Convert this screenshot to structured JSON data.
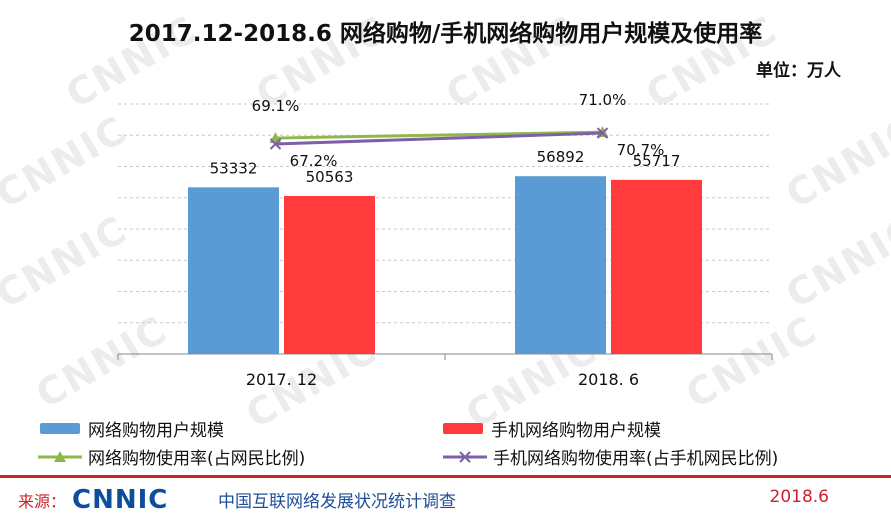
{
  "title": "2017.12-2018.6 网络购物/手机网络购物用户规模及使用率",
  "unit": "单位：万人",
  "watermark": "CNNIC",
  "chart_data": {
    "type": "bar",
    "categories": [
      "2017. 12",
      "2018. 6"
    ],
    "series": [
      {
        "name": "网络购物用户规模",
        "values": [
          53332,
          56892
        ],
        "value_labels": [
          "53332",
          "56892"
        ],
        "color": "#5b9bd5",
        "axis": "left"
      },
      {
        "name": "手机网络购物用户规模",
        "values": [
          50563,
          55717
        ],
        "value_labels": [
          "50563",
          "55717"
        ],
        "color": "#ff3b3b",
        "axis": "left"
      }
    ],
    "line_series": [
      {
        "name": "网络购物使用率(占网民比例)",
        "values": [
          69.1,
          71.0
        ],
        "value_labels": [
          "69.1%",
          "71.0%"
        ],
        "color": "#8fb84b",
        "marker": "triangle",
        "axis": "right"
      },
      {
        "name": "手机网络购物使用率(占手机网民比例)",
        "values": [
          67.2,
          70.7
        ],
        "value_labels": [
          "67.2%",
          "70.7%"
        ],
        "color": "#7f5fa8",
        "marker": "x",
        "axis": "right"
      }
    ],
    "ylim_left": [
      0,
      80000
    ],
    "ylim_right": [
      0,
      80
    ],
    "grid": true,
    "legend_position": "bottom"
  },
  "footer": {
    "source_prefix": "来源：",
    "logo_text": "CNNIC",
    "organization": "中国互联网络发展状况统计调查",
    "date": "2018.6"
  }
}
